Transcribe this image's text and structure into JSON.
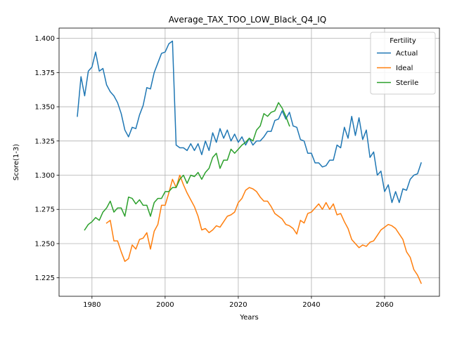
{
  "chart_data": {
    "type": "line",
    "title": "Average_TAX_TOO_LOW_Black_Q4_IQ",
    "xlabel": "Years",
    "ylabel": "Score(1-3)",
    "xlim": [
      1971,
      2075
    ],
    "ylim": [
      1.2115,
      1.4075
    ],
    "xticks": [
      1980,
      2000,
      2020,
      2040,
      2060
    ],
    "yticks": [
      1.225,
      1.25,
      1.275,
      1.3,
      1.325,
      1.35,
      1.375,
      1.4
    ],
    "ytick_labels": [
      "1.225",
      "1.250",
      "1.275",
      "1.300",
      "1.325",
      "1.350",
      "1.375",
      "1.400"
    ],
    "grid": true,
    "legend": {
      "title": "Fertility",
      "placement": "top-right"
    },
    "series": [
      {
        "name": "Actual",
        "color": "#1f77b4",
        "x": [
          1976,
          1977,
          1978,
          1979,
          1980,
          1981,
          1982,
          1983,
          1984,
          1985,
          1986,
          1987,
          1988,
          1989,
          1990,
          1991,
          1992,
          1993,
          1994,
          1995,
          1996,
          1997,
          1998,
          1999,
          2000,
          2001,
          2002,
          2003,
          2004,
          2005,
          2006,
          2007,
          2008,
          2009,
          2010,
          2011,
          2012,
          2013,
          2014,
          2015,
          2016,
          2017,
          2018,
          2019,
          2020,
          2021,
          2022,
          2023,
          2024,
          2025,
          2026,
          2027,
          2028,
          2029,
          2030,
          2031,
          2032,
          2033,
          2034,
          2035,
          2036,
          2037,
          2038,
          2039,
          2040,
          2041,
          2042,
          2043,
          2044,
          2045,
          2046,
          2047,
          2048,
          2049,
          2050,
          2051,
          2052,
          2053,
          2054,
          2055,
          2056,
          2057,
          2058,
          2059,
          2060,
          2061,
          2062,
          2063,
          2064,
          2065,
          2066,
          2067,
          2068,
          2069,
          2070
        ],
        "y": [
          1.343,
          1.372,
          1.358,
          1.376,
          1.379,
          1.39,
          1.376,
          1.378,
          1.366,
          1.361,
          1.358,
          1.353,
          1.345,
          1.333,
          1.328,
          1.335,
          1.334,
          1.344,
          1.351,
          1.364,
          1.363,
          1.375,
          1.382,
          1.389,
          1.39,
          1.396,
          1.398,
          1.322,
          1.32,
          1.32,
          1.318,
          1.323,
          1.318,
          1.323,
          1.315,
          1.325,
          1.318,
          1.331,
          1.324,
          1.334,
          1.327,
          1.333,
          1.325,
          1.33,
          1.324,
          1.328,
          1.322,
          1.327,
          1.322,
          1.325,
          1.325,
          1.328,
          1.332,
          1.332,
          1.34,
          1.341,
          1.347,
          1.341,
          1.346,
          1.336,
          1.335,
          1.326,
          1.325,
          1.316,
          1.316,
          1.309,
          1.309,
          1.306,
          1.307,
          1.311,
          1.311,
          1.322,
          1.32,
          1.335,
          1.327,
          1.343,
          1.329,
          1.342,
          1.326,
          1.333,
          1.313,
          1.317,
          1.3,
          1.303,
          1.288,
          1.293,
          1.28,
          1.288,
          1.28,
          1.29,
          1.289,
          1.297,
          1.3,
          1.301,
          1.309
        ]
      },
      {
        "name": "Ideal",
        "color": "#ff7f0e",
        "x": [
          1984,
          1985,
          1986,
          1987,
          1988,
          1989,
          1990,
          1991,
          1992,
          1993,
          1994,
          1995,
          1996,
          1997,
          1998,
          1999,
          2000,
          2001,
          2002,
          2003,
          2004,
          2005,
          2006,
          2007,
          2008,
          2009,
          2010,
          2011,
          2012,
          2013,
          2014,
          2015,
          2016,
          2017,
          2018,
          2019,
          2020,
          2021,
          2022,
          2023,
          2024,
          2025,
          2026,
          2027,
          2028,
          2029,
          2030,
          2031,
          2032,
          2033,
          2034,
          2035,
          2036,
          2037,
          2038,
          2039,
          2040,
          2041,
          2042,
          2043,
          2044,
          2045,
          2046,
          2047,
          2048,
          2049,
          2050,
          2051,
          2052,
          2053,
          2054,
          2055,
          2056,
          2057,
          2058,
          2059,
          2060,
          2061,
          2062,
          2063,
          2064,
          2065,
          2066,
          2067,
          2068,
          2069,
          2070
        ],
        "y": [
          1.265,
          1.267,
          1.252,
          1.252,
          1.244,
          1.237,
          1.239,
          1.249,
          1.246,
          1.253,
          1.254,
          1.258,
          1.246,
          1.259,
          1.264,
          1.278,
          1.278,
          1.287,
          1.297,
          1.291,
          1.3,
          1.293,
          1.287,
          1.282,
          1.277,
          1.27,
          1.26,
          1.261,
          1.258,
          1.26,
          1.263,
          1.262,
          1.266,
          1.27,
          1.271,
          1.273,
          1.28,
          1.283,
          1.289,
          1.291,
          1.29,
          1.288,
          1.284,
          1.281,
          1.281,
          1.277,
          1.272,
          1.27,
          1.268,
          1.264,
          1.263,
          1.261,
          1.257,
          1.267,
          1.265,
          1.272,
          1.273,
          1.276,
          1.279,
          1.275,
          1.28,
          1.275,
          1.279,
          1.271,
          1.272,
          1.266,
          1.261,
          1.253,
          1.25,
          1.247,
          1.249,
          1.248,
          1.251,
          1.252,
          1.256,
          1.26,
          1.262,
          1.264,
          1.263,
          1.261,
          1.257,
          1.253,
          1.244,
          1.24,
          1.231,
          1.227,
          1.221
        ]
      },
      {
        "name": "Sterile",
        "color": "#2ca02c",
        "x": [
          1978,
          1979,
          1980,
          1981,
          1982,
          1983,
          1984,
          1985,
          1986,
          1987,
          1988,
          1989,
          1990,
          1991,
          1992,
          1993,
          1994,
          1995,
          1996,
          1997,
          1998,
          1999,
          2000,
          2001,
          2002,
          2003,
          2004,
          2005,
          2006,
          2007,
          2008,
          2009,
          2010,
          2011,
          2012,
          2013,
          2014,
          2015,
          2016,
          2017,
          2018,
          2019,
          2020,
          2021,
          2022,
          2023,
          2024,
          2025,
          2026,
          2027,
          2028,
          2029,
          2030,
          2031,
          2032,
          2033,
          2034
        ],
        "y": [
          1.26,
          1.264,
          1.266,
          1.269,
          1.267,
          1.273,
          1.276,
          1.281,
          1.273,
          1.276,
          1.276,
          1.27,
          1.284,
          1.283,
          1.279,
          1.282,
          1.278,
          1.278,
          1.27,
          1.28,
          1.283,
          1.283,
          1.288,
          1.288,
          1.291,
          1.291,
          1.297,
          1.3,
          1.294,
          1.3,
          1.299,
          1.302,
          1.297,
          1.302,
          1.305,
          1.313,
          1.316,
          1.305,
          1.311,
          1.311,
          1.319,
          1.316,
          1.319,
          1.322,
          1.324,
          1.327,
          1.325,
          1.333,
          1.336,
          1.345,
          1.343,
          1.346,
          1.347,
          1.353,
          1.349,
          1.343,
          1.336
        ]
      }
    ]
  }
}
